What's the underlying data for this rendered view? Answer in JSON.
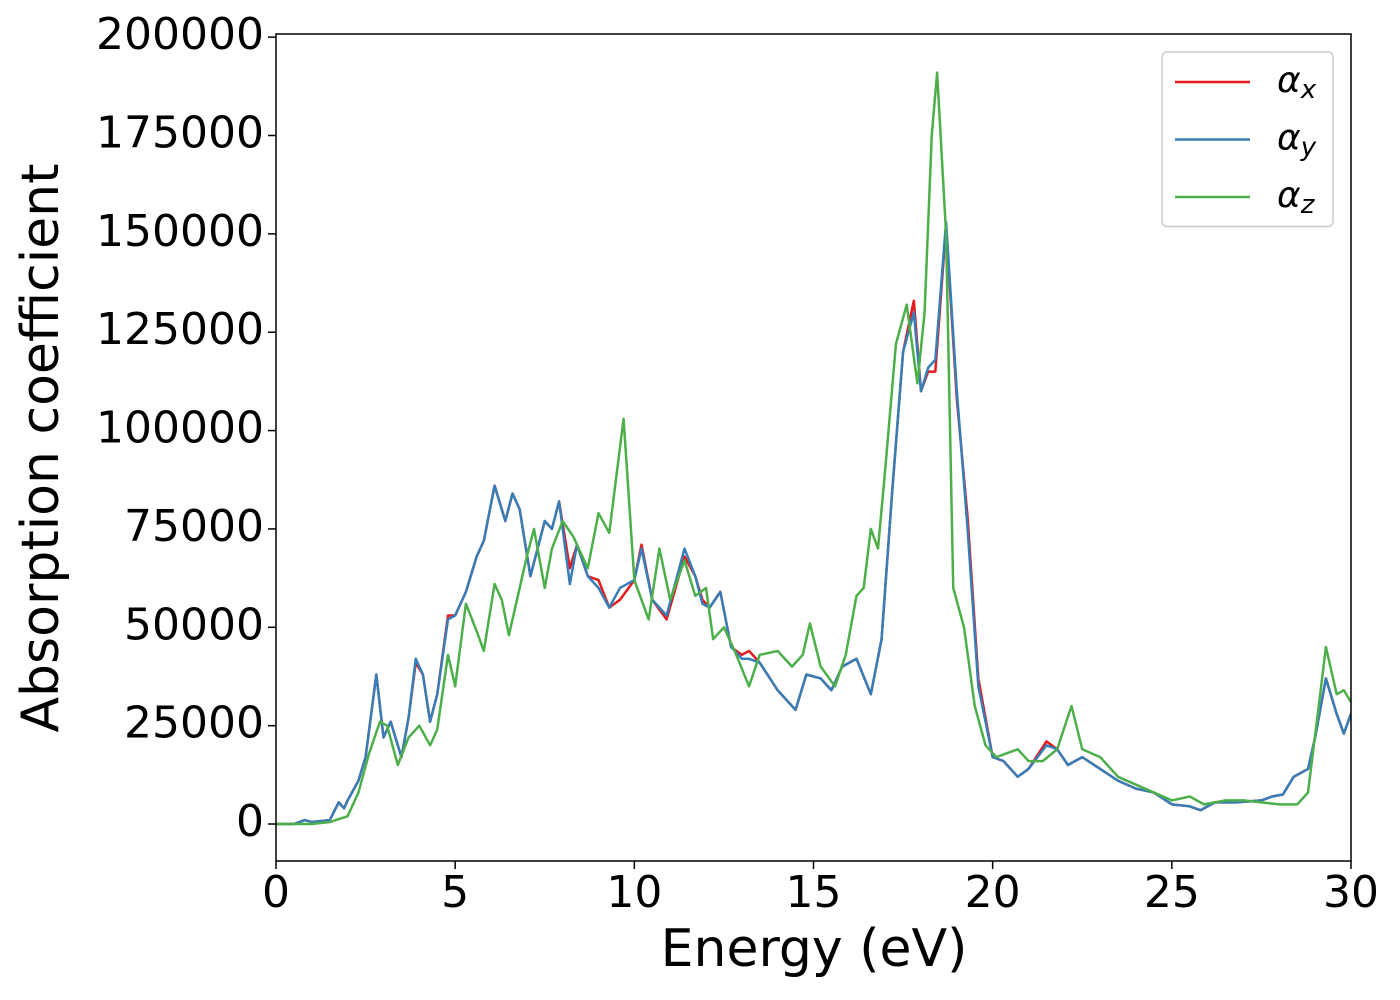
{
  "chart_data": {
    "type": "line",
    "xlabel": "Energy (eV)",
    "ylabel": "Absorption coefficient",
    "xlim": [
      0,
      30
    ],
    "ylim": [
      -9400,
      200800
    ],
    "xticks": [
      0,
      5,
      10,
      15,
      20,
      25,
      30
    ],
    "yticks": [
      0,
      25000,
      50000,
      75000,
      100000,
      125000,
      150000,
      175000,
      200000
    ],
    "legend": "upper right",
    "grid": false,
    "series": [
      {
        "name": "α_x",
        "color": "#e41a1c",
        "x": [
          0,
          0.5,
          0.8,
          1,
          1.5,
          1.75,
          1.9,
          2,
          2.3,
          2.5,
          2.8,
          3,
          3.2,
          3.5,
          3.7,
          3.9,
          4.1,
          4.3,
          4.5,
          4.8,
          5,
          5.3,
          5.6,
          5.8,
          6.1,
          6.4,
          6.6,
          6.8,
          7.1,
          7.5,
          7.7,
          7.9,
          8.2,
          8.4,
          8.7,
          9,
          9.3,
          9.6,
          10,
          10.2,
          10.5,
          10.9,
          11.4,
          11.7,
          11.9,
          12.1,
          12.4,
          12.7,
          13,
          13.2,
          13.5,
          14,
          14.5,
          14.8,
          15.2,
          15.5,
          15.8,
          16.2,
          16.6,
          16.9,
          17.2,
          17.5,
          17.8,
          18,
          18.2,
          18.4,
          18.7,
          19,
          19.3,
          19.6,
          20,
          20.3,
          20.7,
          21,
          21.5,
          21.8,
          22.1,
          22.5,
          23,
          23.5,
          24,
          24.5,
          25,
          25.5,
          25.8,
          26.2,
          26.8,
          27.5,
          27.8,
          28.1,
          28.4,
          28.6,
          28.8,
          29,
          29.3,
          29.6,
          29.8,
          30
        ],
        "values": [
          0,
          0,
          1000,
          500,
          1000,
          5500,
          4000,
          6000,
          11000,
          17000,
          38000,
          22000,
          26000,
          17000,
          27000,
          41000,
          38000,
          26000,
          33000,
          53000,
          53000,
          59000,
          68000,
          72000,
          86000,
          77000,
          84000,
          80000,
          63000,
          77000,
          75000,
          82000,
          65000,
          71000,
          63000,
          62000,
          55000,
          57000,
          62000,
          71000,
          57000,
          52000,
          68000,
          63000,
          57000,
          55000,
          59000,
          45000,
          43000,
          44000,
          41000,
          34000,
          29000,
          38000,
          37000,
          34000,
          40000,
          42000,
          33000,
          47000,
          85000,
          120000,
          133000,
          110000,
          115000,
          115000,
          152000,
          108000,
          78000,
          37000,
          17000,
          16000,
          12000,
          14000,
          21000,
          19000,
          15000,
          17000,
          14000,
          11000,
          9000,
          8000,
          5000,
          4500,
          3500,
          5500,
          5500,
          6000,
          7000,
          7500,
          12000,
          13000,
          14000,
          22000,
          37000,
          28000,
          23000,
          28000
        ]
      },
      {
        "name": "α_y",
        "color": "#377eb8",
        "x": [
          0,
          0.5,
          0.8,
          1,
          1.5,
          1.75,
          1.9,
          2,
          2.3,
          2.5,
          2.8,
          3,
          3.2,
          3.5,
          3.7,
          3.9,
          4.1,
          4.3,
          4.5,
          4.8,
          5,
          5.3,
          5.6,
          5.8,
          6.1,
          6.4,
          6.6,
          6.8,
          7.1,
          7.5,
          7.7,
          7.9,
          8.2,
          8.4,
          8.7,
          9,
          9.3,
          9.6,
          10,
          10.2,
          10.5,
          10.9,
          11.4,
          11.7,
          11.9,
          12.1,
          12.4,
          12.7,
          13,
          13.2,
          13.5,
          14,
          14.5,
          14.8,
          15.2,
          15.5,
          15.8,
          16.2,
          16.6,
          16.9,
          17.2,
          17.5,
          17.8,
          18,
          18.2,
          18.4,
          18.7,
          19,
          19.3,
          19.6,
          20,
          20.3,
          20.7,
          21,
          21.5,
          21.8,
          22.1,
          22.5,
          23,
          23.5,
          24,
          24.5,
          25,
          25.5,
          25.8,
          26.2,
          26.8,
          27.5,
          27.8,
          28.1,
          28.4,
          28.6,
          28.8,
          29,
          29.3,
          29.6,
          29.8,
          30
        ],
        "values": [
          0,
          0,
          1000,
          500,
          1000,
          5500,
          4000,
          6000,
          11000,
          17000,
          38000,
          22000,
          26000,
          17000,
          27000,
          42000,
          38000,
          26000,
          33000,
          52000,
          53000,
          59000,
          68000,
          72000,
          86000,
          77000,
          84000,
          80000,
          63000,
          77000,
          75000,
          82000,
          61000,
          71000,
          63000,
          60000,
          55000,
          60000,
          62000,
          70000,
          57000,
          53000,
          70000,
          63000,
          56000,
          55000,
          59000,
          45000,
          42000,
          42000,
          41000,
          34000,
          29000,
          38000,
          37000,
          34000,
          40000,
          42000,
          33000,
          47000,
          85000,
          120000,
          130000,
          110000,
          116000,
          118000,
          153000,
          110000,
          75000,
          35000,
          17000,
          16000,
          12000,
          14000,
          20000,
          19000,
          15000,
          17000,
          14000,
          11000,
          9000,
          8000,
          5000,
          4500,
          3500,
          5500,
          5500,
          6000,
          7000,
          7500,
          12000,
          13000,
          14000,
          22000,
          37000,
          28000,
          23000,
          28000
        ]
      },
      {
        "name": "α_z",
        "color": "#4daf4a",
        "x": [
          0,
          1,
          1.5,
          2,
          2.3,
          2.6,
          2.9,
          3.1,
          3.4,
          3.7,
          4,
          4.3,
          4.5,
          4.8,
          5,
          5.3,
          5.6,
          5.8,
          6.1,
          6.3,
          6.5,
          6.8,
          7,
          7.2,
          7.5,
          7.7,
          8,
          8.3,
          8.7,
          9,
          9.3,
          9.7,
          10,
          10.4,
          10.7,
          11,
          11.4,
          11.7,
          12,
          12.2,
          12.5,
          12.8,
          13.2,
          13.5,
          14,
          14.4,
          14.7,
          14.9,
          15.2,
          15.6,
          15.9,
          16.2,
          16.4,
          16.6,
          16.8,
          17,
          17.3,
          17.6,
          17.9,
          18.1,
          18.3,
          18.45,
          18.7,
          18.9,
          19.2,
          19.5,
          19.8,
          20.1,
          20.4,
          20.7,
          21,
          21.4,
          21.8,
          22.2,
          22.5,
          23,
          23.5,
          24,
          24.5,
          25,
          25.5,
          25.9,
          26.5,
          27,
          27.5,
          28,
          28.5,
          28.8,
          29.1,
          29.3,
          29.6,
          29.8,
          30
        ],
        "values": [
          0,
          0,
          500,
          2000,
          8000,
          18000,
          26000,
          25000,
          15000,
          22000,
          25000,
          20000,
          24000,
          43000,
          35000,
          56000,
          49000,
          44000,
          61000,
          57000,
          48000,
          60000,
          68000,
          75000,
          60000,
          70000,
          77000,
          73000,
          65000,
          79000,
          74000,
          103000,
          62000,
          52000,
          70000,
          57000,
          67000,
          58000,
          60000,
          47000,
          50000,
          44000,
          35000,
          43000,
          44000,
          40000,
          43000,
          51000,
          40000,
          35000,
          43000,
          58000,
          60000,
          75000,
          70000,
          90000,
          122000,
          132000,
          112000,
          130000,
          175000,
          191000,
          150000,
          60000,
          50000,
          30000,
          20000,
          17000,
          18000,
          19000,
          16000,
          16000,
          19000,
          30000,
          19000,
          17000,
          12000,
          10000,
          8000,
          6000,
          7000,
          5000,
          6000,
          6000,
          5500,
          5000,
          5000,
          8000,
          30000,
          45000,
          33000,
          34000,
          31000
        ]
      }
    ]
  }
}
